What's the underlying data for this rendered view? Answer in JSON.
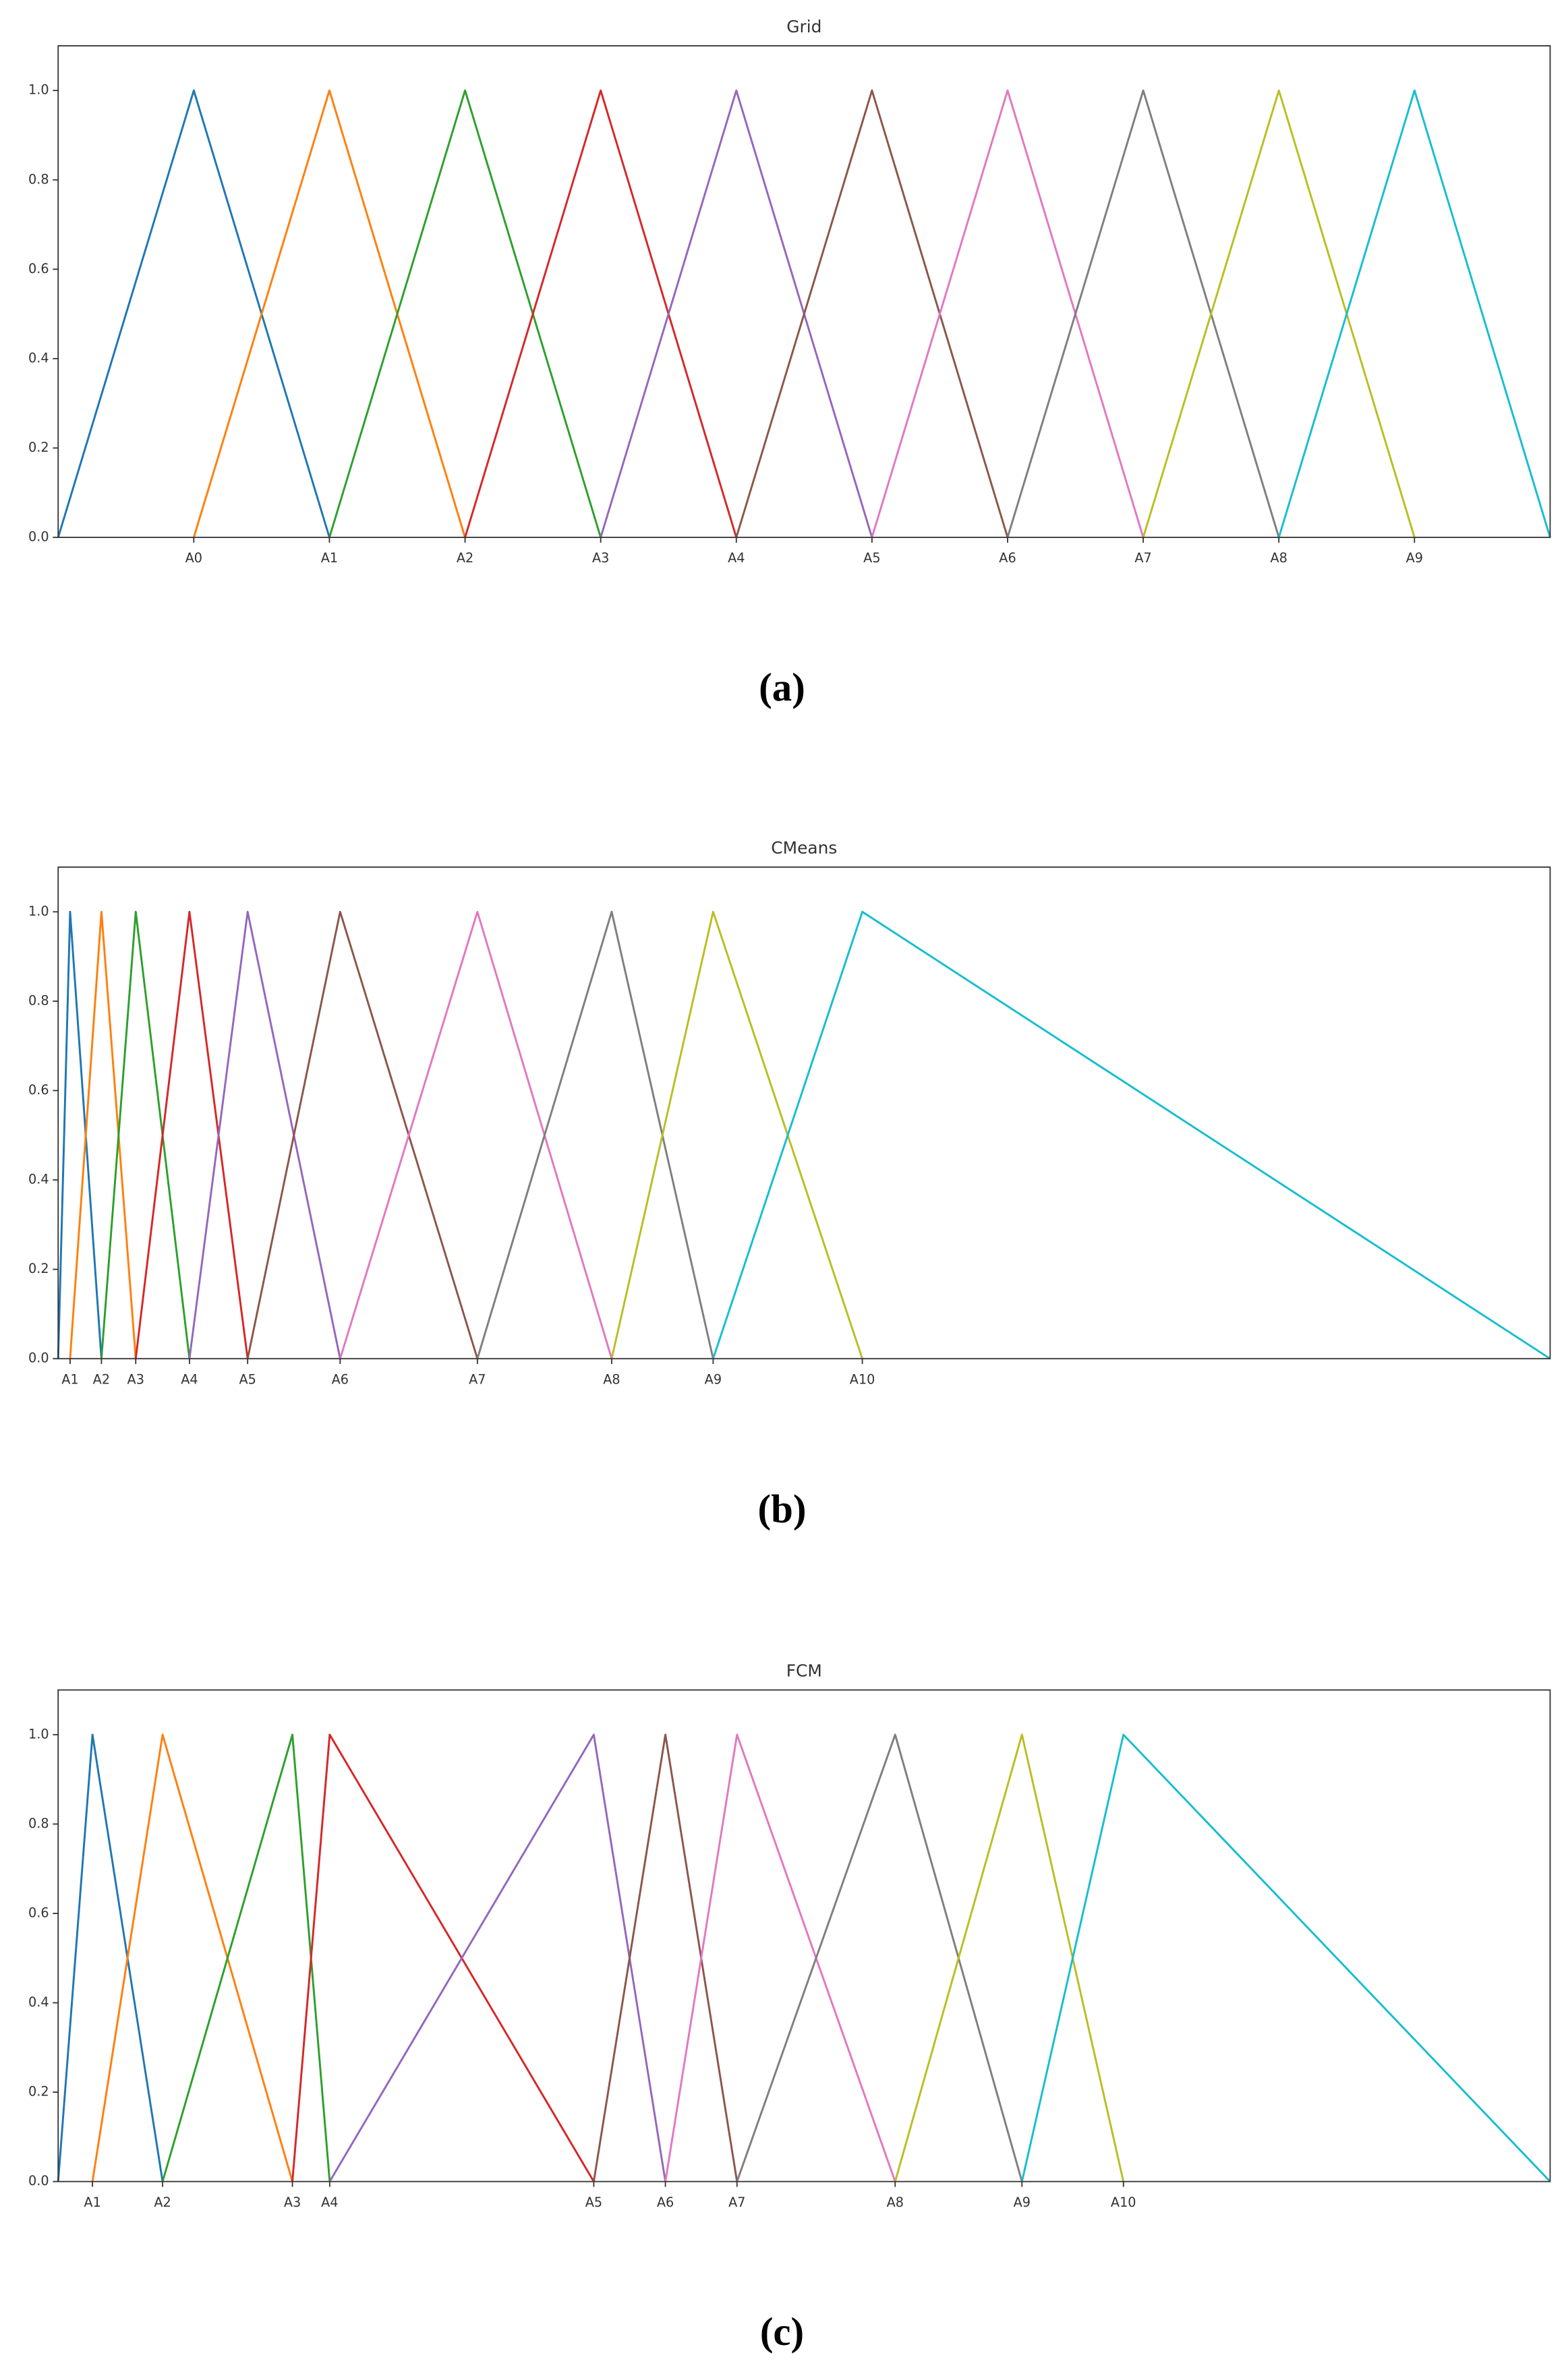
{
  "chart_data": [
    {
      "type": "line",
      "title": "Grid",
      "caption": "(a)",
      "xlim": [
        0,
        11
      ],
      "xticks": [
        {
          "value": 1,
          "label": "A0"
        },
        {
          "value": 2,
          "label": "A1"
        },
        {
          "value": 3,
          "label": "A2"
        },
        {
          "value": 4,
          "label": "A3"
        },
        {
          "value": 5,
          "label": "A4"
        },
        {
          "value": 6,
          "label": "A5"
        },
        {
          "value": 7,
          "label": "A6"
        },
        {
          "value": 8,
          "label": "A7"
        },
        {
          "value": 9,
          "label": "A8"
        },
        {
          "value": 10,
          "label": "A9"
        }
      ],
      "ylim": [
        0,
        1.1
      ],
      "yticks": [
        {
          "value": 0,
          "label": "0.0"
        },
        0.2,
        0.4,
        0.6,
        0.8,
        {
          "value": 1,
          "label": "1.0"
        }
      ],
      "series": [
        {
          "color": "#1f77b4",
          "x": [
            0,
            1,
            2
          ],
          "values": [
            0,
            1,
            0
          ]
        },
        {
          "color": "#ff7f0e",
          "x": [
            1,
            2,
            3
          ],
          "values": [
            0,
            1,
            0
          ]
        },
        {
          "color": "#2ca02c",
          "x": [
            2,
            3,
            4
          ],
          "values": [
            0,
            1,
            0
          ]
        },
        {
          "color": "#d62728",
          "x": [
            3,
            4,
            5
          ],
          "values": [
            0,
            1,
            0
          ]
        },
        {
          "color": "#9467bd",
          "x": [
            4,
            5,
            6
          ],
          "values": [
            0,
            1,
            0
          ]
        },
        {
          "color": "#8c564b",
          "x": [
            5,
            6,
            7
          ],
          "values": [
            0,
            1,
            0
          ]
        },
        {
          "color": "#e377c2",
          "x": [
            6,
            7,
            8
          ],
          "values": [
            0,
            1,
            0
          ]
        },
        {
          "color": "#7f7f7f",
          "x": [
            7,
            8,
            9
          ],
          "values": [
            0,
            1,
            0
          ]
        },
        {
          "color": "#bcbd22",
          "x": [
            8,
            9,
            10
          ],
          "values": [
            0,
            1,
            0
          ]
        },
        {
          "color": "#17becf",
          "x": [
            9,
            10,
            11
          ],
          "values": [
            0,
            1,
            0
          ]
        }
      ]
    },
    {
      "type": "line",
      "title": "CMeans",
      "caption": "(b)",
      "xlim": [
        0,
        100
      ],
      "xticks": [
        {
          "value": 0.8,
          "label": "A1"
        },
        {
          "value": 2.9,
          "label": "A2"
        },
        {
          "value": 5.2,
          "label": "A3"
        },
        {
          "value": 8.8,
          "label": "A4"
        },
        {
          "value": 12.7,
          "label": "A5"
        },
        {
          "value": 18.9,
          "label": "A6"
        },
        {
          "value": 28.1,
          "label": "A7"
        },
        {
          "value": 37.1,
          "label": "A8"
        },
        {
          "value": 43.9,
          "label": "A9"
        },
        {
          "value": 53.9,
          "label": "A10"
        }
      ],
      "ylim": [
        0,
        1.1
      ],
      "yticks": [
        {
          "value": 0,
          "label": "0.0"
        },
        0.2,
        0.4,
        0.6,
        0.8,
        {
          "value": 1,
          "label": "1.0"
        }
      ],
      "series": [
        {
          "color": "#1f77b4",
          "x": [
            0,
            0.8,
            2.9
          ],
          "values": [
            0,
            1,
            0
          ]
        },
        {
          "color": "#ff7f0e",
          "x": [
            0.8,
            2.9,
            5.2
          ],
          "values": [
            0,
            1,
            0
          ]
        },
        {
          "color": "#2ca02c",
          "x": [
            2.9,
            5.2,
            8.8
          ],
          "values": [
            0,
            1,
            0
          ]
        },
        {
          "color": "#d62728",
          "x": [
            5.2,
            8.8,
            12.7
          ],
          "values": [
            0,
            1,
            0
          ]
        },
        {
          "color": "#9467bd",
          "x": [
            8.8,
            12.7,
            18.9
          ],
          "values": [
            0,
            1,
            0
          ]
        },
        {
          "color": "#8c564b",
          "x": [
            12.7,
            18.9,
            28.1
          ],
          "values": [
            0,
            1,
            0
          ]
        },
        {
          "color": "#e377c2",
          "x": [
            18.9,
            28.1,
            37.1
          ],
          "values": [
            0,
            1,
            0
          ]
        },
        {
          "color": "#7f7f7f",
          "x": [
            28.1,
            37.1,
            43.9
          ],
          "values": [
            0,
            1,
            0
          ]
        },
        {
          "color": "#bcbd22",
          "x": [
            37.1,
            43.9,
            53.9
          ],
          "values": [
            0,
            1,
            0
          ]
        },
        {
          "color": "#17becf",
          "x": [
            43.9,
            53.9,
            100
          ],
          "values": [
            0,
            1,
            0
          ]
        }
      ]
    },
    {
      "type": "line",
      "title": "FCM",
      "caption": "(c)",
      "xlim": [
        0,
        100
      ],
      "xticks": [
        {
          "value": 2.3,
          "label": "A1"
        },
        {
          "value": 7.0,
          "label": "A2"
        },
        {
          "value": 15.7,
          "label": "A3"
        },
        {
          "value": 18.2,
          "label": "A4"
        },
        {
          "value": 35.9,
          "label": "A5"
        },
        {
          "value": 40.7,
          "label": "A6"
        },
        {
          "value": 45.5,
          "label": "A7"
        },
        {
          "value": 56.1,
          "label": "A8"
        },
        {
          "value": 64.6,
          "label": "A9"
        },
        {
          "value": 71.4,
          "label": "A10"
        }
      ],
      "ylim": [
        0,
        1.1
      ],
      "yticks": [
        {
          "value": 0,
          "label": "0.0"
        },
        0.2,
        0.4,
        0.6,
        0.8,
        {
          "value": 1,
          "label": "1.0"
        }
      ],
      "series": [
        {
          "color": "#1f77b4",
          "x": [
            0,
            2.3,
            7.0
          ],
          "values": [
            0,
            1,
            0
          ]
        },
        {
          "color": "#ff7f0e",
          "x": [
            2.3,
            7.0,
            15.7
          ],
          "values": [
            0,
            1,
            0
          ]
        },
        {
          "color": "#2ca02c",
          "x": [
            7.0,
            15.7,
            18.2
          ],
          "values": [
            0,
            1,
            0
          ]
        },
        {
          "color": "#d62728",
          "x": [
            15.7,
            18.2,
            35.9
          ],
          "values": [
            0,
            1,
            0
          ]
        },
        {
          "color": "#9467bd",
          "x": [
            18.2,
            35.9,
            40.7
          ],
          "values": [
            0,
            1,
            0
          ]
        },
        {
          "color": "#8c564b",
          "x": [
            35.9,
            40.7,
            45.5
          ],
          "values": [
            0,
            1,
            0
          ]
        },
        {
          "color": "#e377c2",
          "x": [
            40.7,
            45.5,
            56.1
          ],
          "values": [
            0,
            1,
            0
          ]
        },
        {
          "color": "#7f7f7f",
          "x": [
            45.5,
            56.1,
            64.6
          ],
          "values": [
            0,
            1,
            0
          ]
        },
        {
          "color": "#bcbd22",
          "x": [
            56.1,
            64.6,
            71.4
          ],
          "values": [
            0,
            1,
            0
          ]
        },
        {
          "color": "#17becf",
          "x": [
            64.6,
            71.4,
            100
          ],
          "values": [
            0,
            1,
            0
          ]
        }
      ]
    }
  ]
}
